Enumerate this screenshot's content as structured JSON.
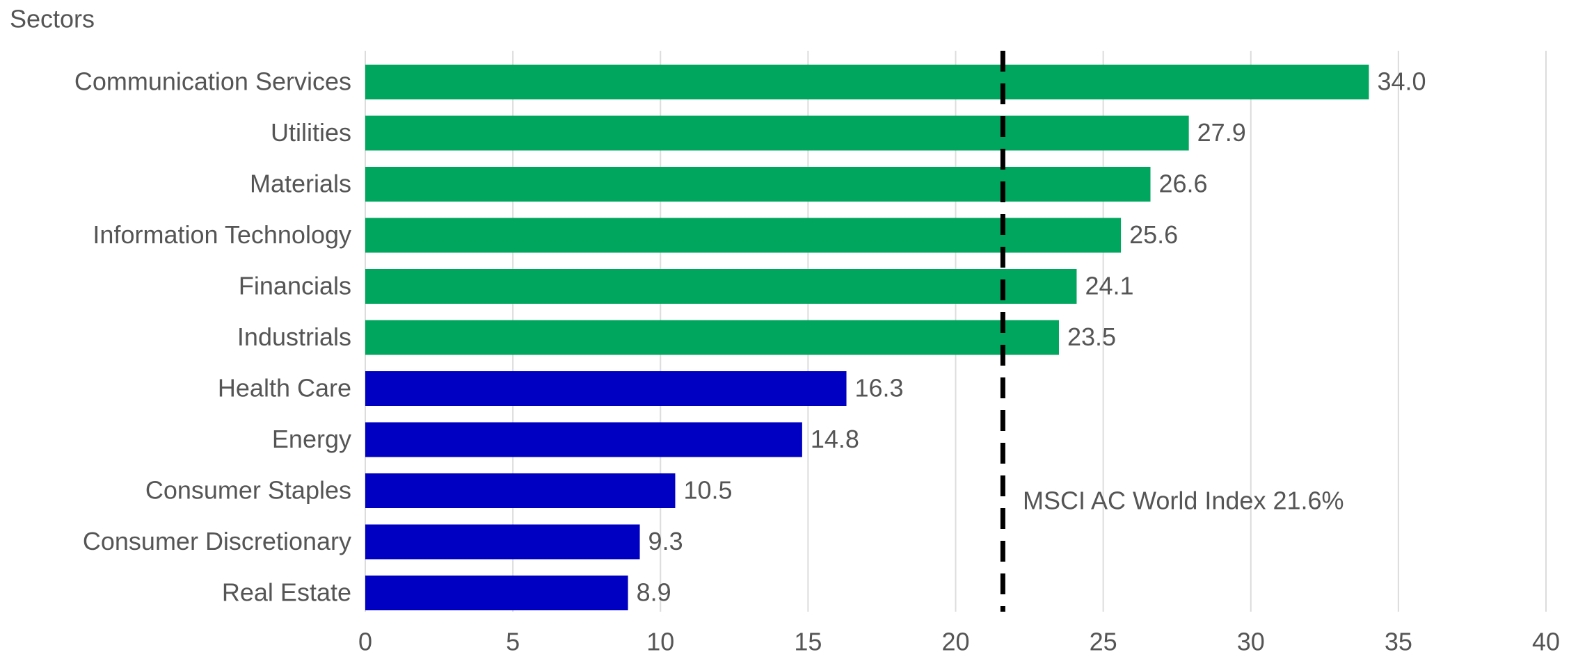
{
  "chart_data": {
    "type": "hbar",
    "axis_title": "Sectors",
    "categories": [
      "Communication Services",
      "Utilities",
      "Materials",
      "Information Technology",
      "Financials",
      "Industrials",
      "Health Care",
      "Energy",
      "Consumer Staples",
      "Consumer Discretionary",
      "Real Estate"
    ],
    "values": [
      34.0,
      27.9,
      26.6,
      25.6,
      24.1,
      23.5,
      16.3,
      14.8,
      10.5,
      9.3,
      8.9
    ],
    "value_labels": [
      "34.0",
      "27.9",
      "26.6",
      "25.6",
      "24.1",
      "23.5",
      "16.3",
      "14.8",
      "10.5",
      "9.3",
      "8.9"
    ],
    "colors": [
      "#00a65d",
      "#00a65d",
      "#00a65d",
      "#00a65d",
      "#00a65d",
      "#00a65d",
      "#0000c2",
      "#0000c2",
      "#0000c2",
      "#0000c2",
      "#0000c2"
    ],
    "xlim": [
      0,
      40
    ],
    "xticks": [
      0,
      5,
      10,
      15,
      20,
      25,
      30,
      35,
      40
    ],
    "grid": true,
    "reference_line": {
      "value": 21.6,
      "label": "MSCI AC World Index 21.6%"
    }
  }
}
